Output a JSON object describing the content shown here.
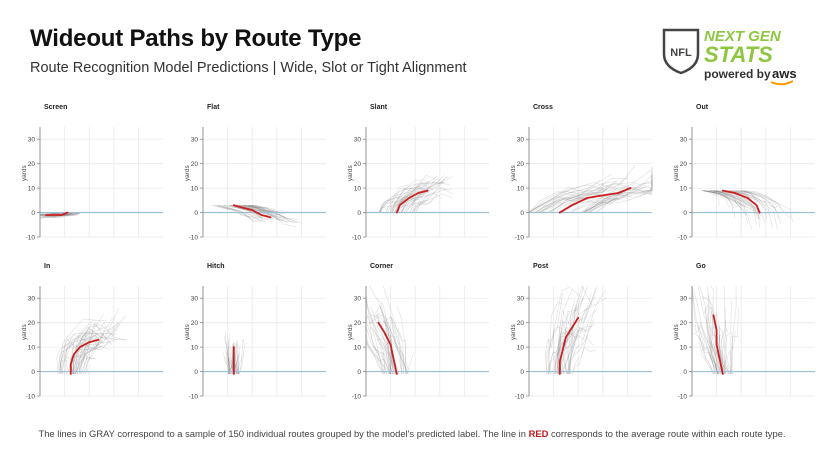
{
  "header": {
    "title": "Wideout Paths by Route Type",
    "subtitle": "Route Recognition Model Predictions | Wide, Slot or Tight Alignment"
  },
  "logo": {
    "shield_text": "NFL",
    "line1": "NEXT GEN",
    "line2": "STATS",
    "powered": "powered by",
    "aws": "aws",
    "colors": {
      "next_gen": "#8dc63f",
      "shield": "#444444",
      "aws_smile": "#ff9900"
    }
  },
  "caption": {
    "before": "The lines in GRAY correspond to a sample of 150 individual routes grouped by the model's predicted label. The line in ",
    "highlight": "RED",
    "after": " corresponds to the average route within each route type."
  },
  "chart_data": [
    {
      "type": "line",
      "title": "Screen",
      "ylabel": "yards",
      "ylim": [
        -10,
        35
      ],
      "yticks": [
        -10,
        0,
        10,
        20,
        30
      ],
      "xlim": [
        -10,
        30
      ],
      "baseline": 0,
      "series": [
        {
          "values": [
            [
              -1,
              0
            ],
            [
              -3,
              -1
            ],
            [
              -5,
              -1
            ],
            [
              -6,
              -1
            ],
            [
              -8,
              -1
            ]
          ]
        }
      ]
    },
    {
      "type": "line",
      "title": "Flat",
      "ylabel": "yards",
      "ylim": [
        -10,
        35
      ],
      "yticks": [
        -10,
        0,
        10,
        20,
        30
      ],
      "xlim": [
        -10,
        30
      ],
      "baseline": 0,
      "series": [
        {
          "values": [
            [
              0,
              3
            ],
            [
              3,
              2
            ],
            [
              6,
              1
            ],
            [
              9,
              -1
            ],
            [
              12,
              -2
            ]
          ]
        }
      ]
    },
    {
      "type": "line",
      "title": "Slant",
      "ylabel": "yards",
      "ylim": [
        -10,
        35
      ],
      "yticks": [
        -10,
        0,
        10,
        20,
        30
      ],
      "xlim": [
        -10,
        30
      ],
      "baseline": 0,
      "series": [
        {
          "values": [
            [
              0,
              0
            ],
            [
              1,
              3
            ],
            [
              4,
              6
            ],
            [
              7,
              8
            ],
            [
              10,
              9
            ]
          ]
        }
      ]
    },
    {
      "type": "line",
      "title": "Cross",
      "ylabel": "yards",
      "ylim": [
        -10,
        35
      ],
      "yticks": [
        -10,
        0,
        10,
        20,
        30
      ],
      "xlim": [
        -10,
        30
      ],
      "baseline": 0,
      "series": [
        {
          "values": [
            [
              0,
              0
            ],
            [
              4,
              3
            ],
            [
              9,
              6
            ],
            [
              14,
              7
            ],
            [
              19,
              8
            ],
            [
              23,
              10
            ]
          ]
        }
      ]
    },
    {
      "type": "line",
      "title": "Out",
      "ylabel": "yards",
      "ylim": [
        -10,
        35
      ],
      "yticks": [
        -10,
        0,
        10,
        20,
        30
      ],
      "xlim": [
        -10,
        30
      ],
      "baseline": 0,
      "series": [
        {
          "values": [
            [
              0,
              9
            ],
            [
              4,
              8
            ],
            [
              8,
              6
            ],
            [
              11,
              3
            ],
            [
              12,
              0
            ]
          ]
        }
      ]
    },
    {
      "type": "line",
      "title": "In",
      "ylabel": "yards",
      "ylim": [
        -10,
        35
      ],
      "yticks": [
        -10,
        0,
        10,
        20,
        30
      ],
      "xlim": [
        -10,
        30
      ],
      "baseline": 0,
      "series": [
        {
          "values": [
            [
              0,
              -1
            ],
            [
              0,
              3
            ],
            [
              1,
              7
            ],
            [
              3,
              10
            ],
            [
              6,
              12
            ],
            [
              9,
              13
            ]
          ]
        }
      ]
    },
    {
      "type": "line",
      "title": "Hitch",
      "ylabel": "yards",
      "ylim": [
        -10,
        35
      ],
      "yticks": [
        -10,
        0,
        10,
        20,
        30
      ],
      "xlim": [
        -10,
        30
      ],
      "baseline": 0,
      "series": [
        {
          "values": [
            [
              0,
              -1
            ],
            [
              0,
              3
            ],
            [
              0,
              7
            ],
            [
              0,
              10
            ]
          ]
        }
      ]
    },
    {
      "type": "line",
      "title": "Corner",
      "ylabel": "yards",
      "ylim": [
        -10,
        35
      ],
      "yticks": [
        -10,
        0,
        10,
        20,
        30
      ],
      "xlim": [
        -10,
        30
      ],
      "baseline": 0,
      "series": [
        {
          "values": [
            [
              0,
              -1
            ],
            [
              -1,
              5
            ],
            [
              -2,
              11
            ],
            [
              -4,
              16
            ],
            [
              -6,
              20
            ]
          ]
        }
      ]
    },
    {
      "type": "line",
      "title": "Post",
      "ylabel": "yards",
      "ylim": [
        -10,
        35
      ],
      "yticks": [
        -10,
        0,
        10,
        20,
        30
      ],
      "xlim": [
        -10,
        30
      ],
      "baseline": 0,
      "series": [
        {
          "values": [
            [
              0,
              -1
            ],
            [
              0,
              4
            ],
            [
              1,
              9
            ],
            [
              2,
              14
            ],
            [
              4,
              18
            ],
            [
              6,
              22
            ]
          ]
        }
      ]
    },
    {
      "type": "line",
      "title": "Go",
      "ylabel": "yards",
      "ylim": [
        -10,
        35
      ],
      "yticks": [
        -10,
        0,
        10,
        20,
        30
      ],
      "xlim": [
        -10,
        30
      ],
      "baseline": 0,
      "series": [
        {
          "values": [
            [
              0,
              -1
            ],
            [
              -1,
              5
            ],
            [
              -2,
              11
            ],
            [
              -2,
              17
            ],
            [
              -3,
              23
            ]
          ]
        }
      ]
    }
  ]
}
